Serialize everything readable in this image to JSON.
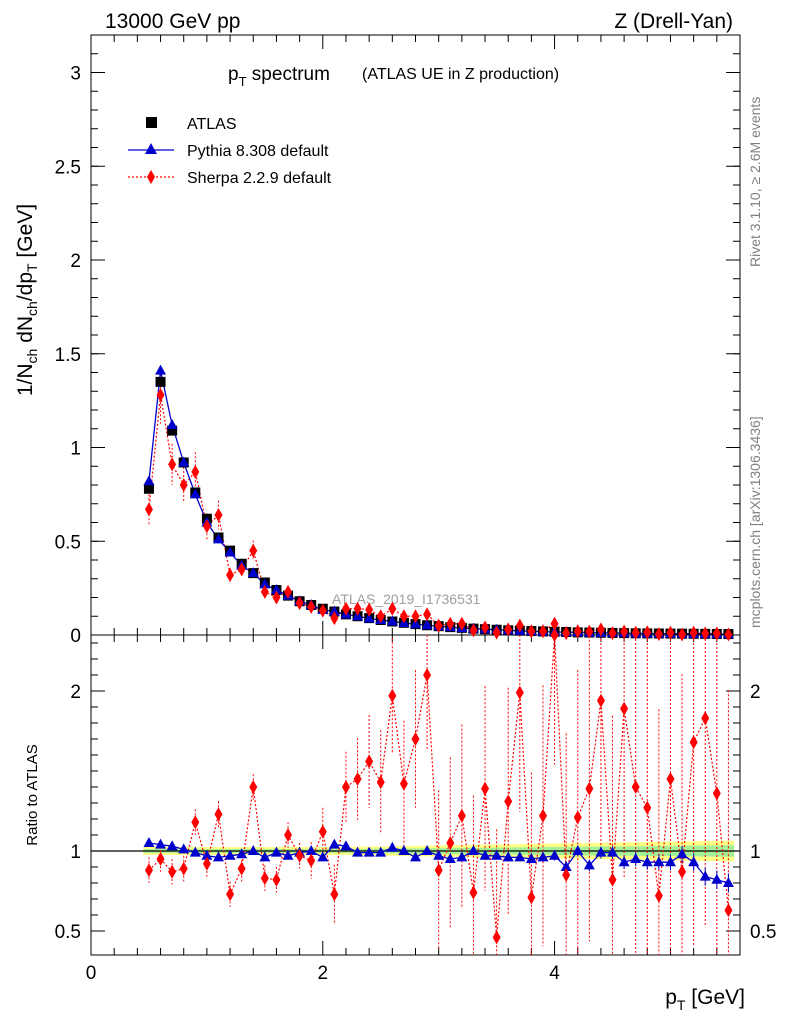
{
  "header": {
    "left": "13000 GeV pp",
    "right": "Z (Drell-Yan)"
  },
  "title": {
    "main_p": "p",
    "main_sub": "T",
    "main_rest": " spectrum",
    "paren": "(ATLAS UE in Z production)"
  },
  "side_labels": {
    "rivet": "Rivet 3.1.10, ≥ 2.6M events",
    "mcplots": "mcplots.cern.ch [arXiv:1306.3436]"
  },
  "watermark": "ATLAS_2019_I1736531",
  "legend": [
    {
      "label": "ATLAS",
      "marker": "square",
      "color": "#000000"
    },
    {
      "label": "Pythia 8.308 default",
      "marker": "triangle",
      "color": "#0000cc"
    },
    {
      "label": "Sherpa 2.2.9 default",
      "marker": "diamond",
      "color": "#ff0000"
    }
  ],
  "axes": {
    "ylabel_top": "1/N_ch dN_ch/dp_T [GeV]",
    "ylabel_bottom": "Ratio to ATLAS",
    "xlabel": "p_T [GeV]"
  },
  "chart_data": [
    {
      "type": "scatter",
      "panel": "main",
      "xlim": [
        0,
        5.6
      ],
      "ylim": [
        0,
        3.2
      ],
      "yticks": [
        "0",
        "0.5",
        "1",
        "1.5",
        "2",
        "2.5",
        "3"
      ],
      "ytick_values": [
        0,
        0.5,
        1,
        1.5,
        2,
        2.5,
        3
      ],
      "x": [
        0.5,
        0.6,
        0.7,
        0.8,
        0.9,
        1.0,
        1.1,
        1.2,
        1.3,
        1.4,
        1.5,
        1.6,
        1.7,
        1.8,
        1.9,
        2.0,
        2.1,
        2.2,
        2.3,
        2.4,
        2.5,
        2.6,
        2.7,
        2.8,
        2.9,
        3.0,
        3.1,
        3.2,
        3.3,
        3.4,
        3.5,
        3.6,
        3.7,
        3.8,
        3.9,
        4.0,
        4.1,
        4.2,
        4.3,
        4.4,
        4.5,
        4.6,
        4.7,
        4.8,
        4.9,
        5.0,
        5.1,
        5.2,
        5.3,
        5.4,
        5.5
      ],
      "series": [
        {
          "name": "ATLAS",
          "values": [
            0.78,
            1.35,
            1.09,
            0.92,
            0.76,
            0.62,
            0.52,
            0.45,
            0.38,
            0.33,
            0.28,
            0.24,
            0.21,
            0.18,
            0.16,
            0.14,
            0.125,
            0.11,
            0.1,
            0.09,
            0.08,
            0.072,
            0.065,
            0.058,
            0.052,
            0.047,
            0.042,
            0.038,
            0.034,
            0.031,
            0.028,
            0.025,
            0.023,
            0.021,
            0.019,
            0.017,
            0.016,
            0.014,
            0.013,
            0.012,
            0.011,
            0.01,
            0.009,
            0.0085,
            0.008,
            0.0075,
            0.007,
            0.0065,
            0.006,
            0.0055,
            0.005
          ]
        },
        {
          "name": "Pythia 8.308 default",
          "values": [
            0.82,
            1.41,
            1.12,
            0.92,
            0.75,
            0.6,
            0.51,
            0.44,
            0.37,
            0.33,
            0.27,
            0.24,
            0.21,
            0.18,
            0.16,
            0.135,
            0.125,
            0.11,
            0.1,
            0.088,
            0.08,
            0.072,
            0.064,
            0.058,
            0.052,
            0.046,
            0.042,
            0.037,
            0.034,
            0.031,
            0.028,
            0.025,
            0.022,
            0.02,
            0.018,
            0.016,
            0.015,
            0.014,
            0.012,
            0.011,
            0.011,
            0.0098,
            0.0087,
            0.0079,
            0.0074,
            0.0073,
            0.0066,
            0.0056,
            0.005,
            0.0045,
            0.004
          ]
        },
        {
          "name": "Sherpa 2.2.9 default",
          "values": [
            0.67,
            1.28,
            0.91,
            0.8,
            0.87,
            0.58,
            0.64,
            0.32,
            0.35,
            0.45,
            0.23,
            0.2,
            0.23,
            0.17,
            0.15,
            0.13,
            0.09,
            0.14,
            0.14,
            0.135,
            0.1,
            0.14,
            0.1,
            0.1,
            0.11,
            0.05,
            0.06,
            0.06,
            0.025,
            0.04,
            0.013,
            0.03,
            0.05,
            0.02,
            0.02,
            0.06,
            0.01,
            0.02,
            0.018,
            0.03,
            0.01,
            0.018,
            0.012,
            0.015,
            0.005,
            0.012,
            0.003,
            0.012,
            0.008,
            0.008,
            0.003
          ]
        }
      ]
    },
    {
      "type": "scatter",
      "panel": "ratio",
      "xlim": [
        0,
        5.6
      ],
      "ylim": [
        0.35,
        2.35
      ],
      "xticks": [
        "0",
        "2",
        "4"
      ],
      "xtick_values": [
        0,
        2,
        4
      ],
      "yticks": [
        "0.5",
        "1",
        "2"
      ],
      "ytick_values": [
        0.5,
        1,
        2
      ],
      "x": [
        0.5,
        0.6,
        0.7,
        0.8,
        0.9,
        1.0,
        1.1,
        1.2,
        1.3,
        1.4,
        1.5,
        1.6,
        1.7,
        1.8,
        1.9,
        2.0,
        2.1,
        2.2,
        2.3,
        2.4,
        2.5,
        2.6,
        2.7,
        2.8,
        2.9,
        3.0,
        3.1,
        3.2,
        3.3,
        3.4,
        3.5,
        3.6,
        3.7,
        3.8,
        3.9,
        4.0,
        4.1,
        4.2,
        4.3,
        4.4,
        4.5,
        4.6,
        4.7,
        4.8,
        4.9,
        5.0,
        5.1,
        5.2,
        5.3,
        5.4,
        5.5
      ],
      "series": [
        {
          "name": "Pythia 8.308 default",
          "values": [
            1.05,
            1.04,
            1.03,
            1.01,
            0.99,
            0.97,
            0.96,
            0.97,
            0.98,
            1.0,
            0.96,
            0.99,
            0.97,
            0.99,
            1.0,
            0.96,
            1.04,
            1.03,
            0.99,
            0.99,
            0.99,
            1.02,
            1.0,
            0.96,
            1.0,
            0.97,
            0.95,
            0.96,
            1.0,
            0.97,
            0.97,
            0.96,
            0.96,
            0.95,
            0.96,
            0.97,
            0.9,
            1.0,
            0.91,
            0.99,
            0.99,
            0.93,
            0.95,
            0.93,
            0.93,
            0.93,
            0.98,
            0.93,
            0.84,
            0.82,
            0.8
          ]
        },
        {
          "name": "Sherpa 2.2.9 default",
          "values": [
            0.88,
            0.95,
            0.87,
            0.89,
            1.18,
            0.92,
            1.23,
            0.73,
            0.89,
            1.4,
            0.83,
            0.82,
            1.1,
            0.97,
            0.94,
            1.12,
            0.73,
            1.4,
            1.45,
            1.56,
            1.43,
            1.97,
            1.42,
            1.7,
            2.1,
            0.88,
            1.05,
            1.22,
            0.74,
            1.39,
            0.46,
            1.31,
            1.99,
            0.71,
            1.22,
            2.39,
            0.85,
            1.21,
            1.39,
            1.94,
            0.82,
            1.89,
            1.4,
            1.27,
            0.72,
            1.45,
            0.87,
            1.68,
            1.83,
            1.36,
            0.63
          ]
        }
      ]
    }
  ]
}
